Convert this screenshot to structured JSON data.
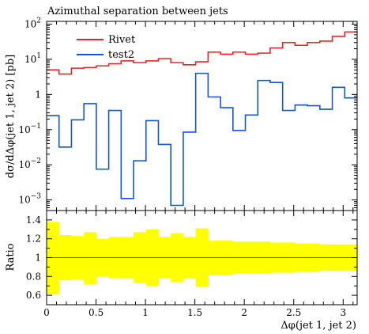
{
  "chart_data": [
    {
      "type": "line",
      "title": "Azimuthal separation between jets",
      "xlabel": "",
      "ylabel": "dσ/dΔφ(jet 1, jet 2) [pb]",
      "yscale": "log",
      "xlim": [
        0,
        3.1416
      ],
      "ylim": [
        0.0005,
        120
      ],
      "y_ticks": [
        {
          "value": 0.001,
          "base": "10",
          "exp": "−3"
        },
        {
          "value": 0.01,
          "base": "10",
          "exp": "−2"
        },
        {
          "value": 0.1,
          "base": "10",
          "exp": "−1"
        },
        {
          "value": 1,
          "base": "1",
          "exp": ""
        },
        {
          "value": 10,
          "base": "10",
          "exp": "1"
        },
        {
          "value": 100,
          "base": "10",
          "exp": "2"
        }
      ],
      "bin_edges": [
        0,
        0.1257,
        0.2513,
        0.377,
        0.5027,
        0.6283,
        0.754,
        0.8796,
        1.0053,
        1.131,
        1.2566,
        1.3823,
        1.508,
        1.6336,
        1.7593,
        1.885,
        2.0106,
        2.1363,
        2.2619,
        2.3876,
        2.5133,
        2.6389,
        2.7646,
        2.8903,
        3.0159,
        3.1416
      ],
      "legend_position": "top-left",
      "series": [
        {
          "name": "Rivet",
          "color": "#ee2222",
          "values": [
            5.0,
            3.8,
            5.6,
            5.8,
            6.5,
            7.5,
            9.0,
            8.0,
            9.0,
            10.5,
            8.0,
            7.0,
            8.5,
            16.0,
            14.0,
            16.0,
            14.0,
            15.0,
            21.0,
            30.0,
            25.0,
            30.0,
            33.0,
            45.0,
            60.0
          ]
        },
        {
          "name": "test2",
          "color": "#1155dd",
          "values": [
            0.25,
            0.032,
            0.19,
            0.55,
            0.0075,
            0.35,
            0.0011,
            0.013,
            0.18,
            0.038,
            0.0007,
            0.085,
            4.0,
            0.85,
            0.42,
            0.095,
            0.26,
            2.5,
            2.2,
            0.35,
            0.5,
            0.48,
            0.38,
            1.6,
            0.8
          ]
        }
      ]
    },
    {
      "type": "area",
      "xlabel": "Δφ(jet 1, jet 2)",
      "ylabel": "Ratio",
      "xlim": [
        0,
        3.1416
      ],
      "ylim": [
        0.5,
        1.5
      ],
      "x_ticks": [
        "0",
        "0.5",
        "1",
        "1.5",
        "2",
        "2.5",
        "3"
      ],
      "y_ticks": [
        "0.6",
        "0.8",
        "1",
        "1.2",
        "1.4"
      ],
      "reference_line": 1,
      "band_color": "#ffff00",
      "band_upper": [
        1.38,
        1.24,
        1.23,
        1.27,
        1.2,
        1.22,
        1.22,
        1.27,
        1.3,
        1.22,
        1.26,
        1.22,
        1.31,
        1.18,
        1.18,
        1.17,
        1.17,
        1.17,
        1.16,
        1.16,
        1.15,
        1.15,
        1.14,
        1.14,
        1.14
      ],
      "band_lower": [
        0.61,
        0.76,
        0.77,
        0.72,
        0.8,
        0.78,
        0.78,
        0.73,
        0.7,
        0.78,
        0.74,
        0.78,
        0.69,
        0.82,
        0.82,
        0.83,
        0.83,
        0.83,
        0.84,
        0.84,
        0.85,
        0.85,
        0.86,
        0.86,
        0.86
      ]
    }
  ]
}
